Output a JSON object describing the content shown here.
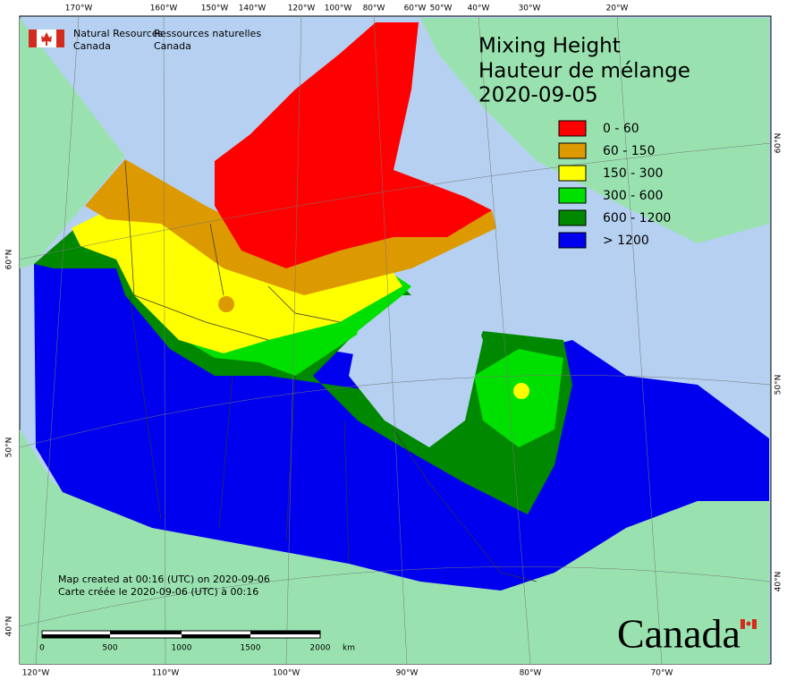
{
  "logo": {
    "en": [
      "Natural Resources",
      "Canada"
    ],
    "fr": [
      "Ressources naturelles",
      "Canada"
    ]
  },
  "title": [
    "Mixing Height",
    "Hauteur de mélange",
    "2020-09-05"
  ],
  "legend": [
    {
      "label": "0 - 60",
      "color": "#ff0000"
    },
    {
      "label": "60 - 150",
      "color": "#dd9900"
    },
    {
      "label": "150 - 300",
      "color": "#ffff00"
    },
    {
      "label": "300 - 600",
      "color": "#00e000"
    },
    {
      "label": "600 - 1200",
      "color": "#008800"
    },
    {
      "label": "> 1200",
      "color": "#0000ee"
    }
  ],
  "top_labels": [
    "170°W",
    "160°W",
    "150°W",
    "140°W",
    "120°W",
    "100°W",
    "80°W",
    "60°W",
    "50°W",
    "40°W",
    "30°W",
    "20°W"
  ],
  "bottom_labels": [
    "120°W",
    "110°W",
    "100°W",
    "90°W",
    "80°W",
    "70°W"
  ],
  "left_labels": [
    "60°N",
    "50°N",
    "40°N"
  ],
  "right_labels": [
    "60°N",
    "50°N",
    "40°N"
  ],
  "note": [
    "Map created at 00:16 (UTC) on 2020-09-06",
    "Carte créée le 2020-09-06 (UTC) à 00:16"
  ],
  "scale_bar": {
    "labels": [
      "0",
      "500",
      "1000",
      "1500",
      "2000"
    ],
    "unit": "km"
  },
  "wordmark": "Canada"
}
